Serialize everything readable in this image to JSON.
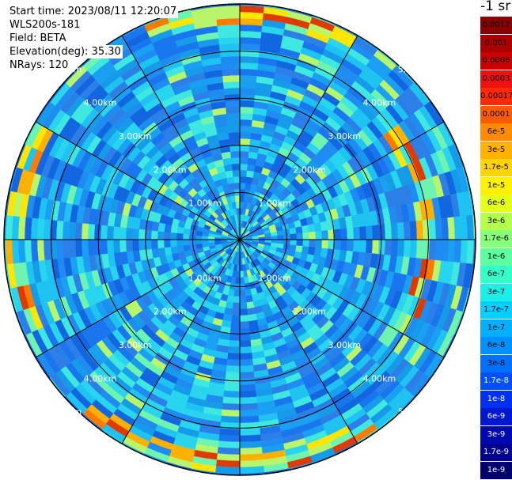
{
  "info": {
    "start_time": "Start time: 2023/08/11 12:20:07",
    "instrument": "WLS200s-181",
    "field": "Field: BETA",
    "elevation": "Elevation(deg): 35.30",
    "nrays": "NRays: 120"
  },
  "units": "-1 sr",
  "range_labels": [
    "1.00km",
    "2.00km",
    "3.00km",
    "4.00km",
    "5.00km"
  ],
  "colorbar": [
    {
      "label": "0.0017",
      "color": "#8b0000",
      "text": "#000000"
    },
    {
      "label": "0.001",
      "color": "#aa0000",
      "text": "#000000"
    },
    {
      "label": "0.0006",
      "color": "#cc0000",
      "text": "#000000"
    },
    {
      "label": "0.0003",
      "color": "#ee1111",
      "text": "#000000"
    },
    {
      "label": "0.00017",
      "color": "#ff2a00",
      "text": "#000000"
    },
    {
      "label": "0.0001",
      "color": "#ff5a00",
      "text": "#000000"
    },
    {
      "label": "6e-5",
      "color": "#ff8c00",
      "text": "#000000"
    },
    {
      "label": "3e-5",
      "color": "#ffb000",
      "text": "#000000"
    },
    {
      "label": "1.7e-5",
      "color": "#ffd400",
      "text": "#000000"
    },
    {
      "label": "1e-5",
      "color": "#fff200",
      "text": "#000000"
    },
    {
      "label": "6e-6",
      "color": "#e3ff1a",
      "text": "#000000"
    },
    {
      "label": "3e-6",
      "color": "#b5ff4a",
      "text": "#000000"
    },
    {
      "label": "1.7e-6",
      "color": "#87ff78",
      "text": "#000000"
    },
    {
      "label": "1e-6",
      "color": "#5effa0",
      "text": "#000000"
    },
    {
      "label": "6e-7",
      "color": "#34ffc8",
      "text": "#000000"
    },
    {
      "label": "3e-7",
      "color": "#1af0e8",
      "text": "#000000"
    },
    {
      "label": "1.7e-7",
      "color": "#00d0ff",
      "text": "#000000"
    },
    {
      "label": "1e-7",
      "color": "#00b0ff",
      "text": "#000000"
    },
    {
      "label": "6e-8",
      "color": "#0090ff",
      "text": "#000000"
    },
    {
      "label": "3e-8",
      "color": "#0070ff",
      "text": "#000000"
    },
    {
      "label": "1.7e-8",
      "color": "#0050ff",
      "text": "#ffffff"
    },
    {
      "label": "1e-8",
      "color": "#0030f0",
      "text": "#ffffff"
    },
    {
      "label": "6e-9",
      "color": "#0018d0",
      "text": "#ffffff"
    },
    {
      "label": "3e-9",
      "color": "#0008b0",
      "text": "#ffffff"
    },
    {
      "label": "1.7e-9",
      "color": "#000090",
      "text": "#ffffff"
    },
    {
      "label": "1e-9",
      "color": "#000070",
      "text": "#ffffff"
    }
  ],
  "palette": {
    "base": [
      "#1976ee",
      "#1e8cf0",
      "#1aa0f2",
      "#2d7fe8",
      "#159be8",
      "#1266e0"
    ],
    "mid": [
      "#1ec3f2",
      "#28d4ee",
      "#3ee8e0"
    ],
    "bright": [
      "#6ef3b0",
      "#b8f56a",
      "#ffe600",
      "#ffb000",
      "#ff7a00",
      "#e03a00"
    ],
    "ring_line": "#000000",
    "range_text": "#ffffff"
  }
}
